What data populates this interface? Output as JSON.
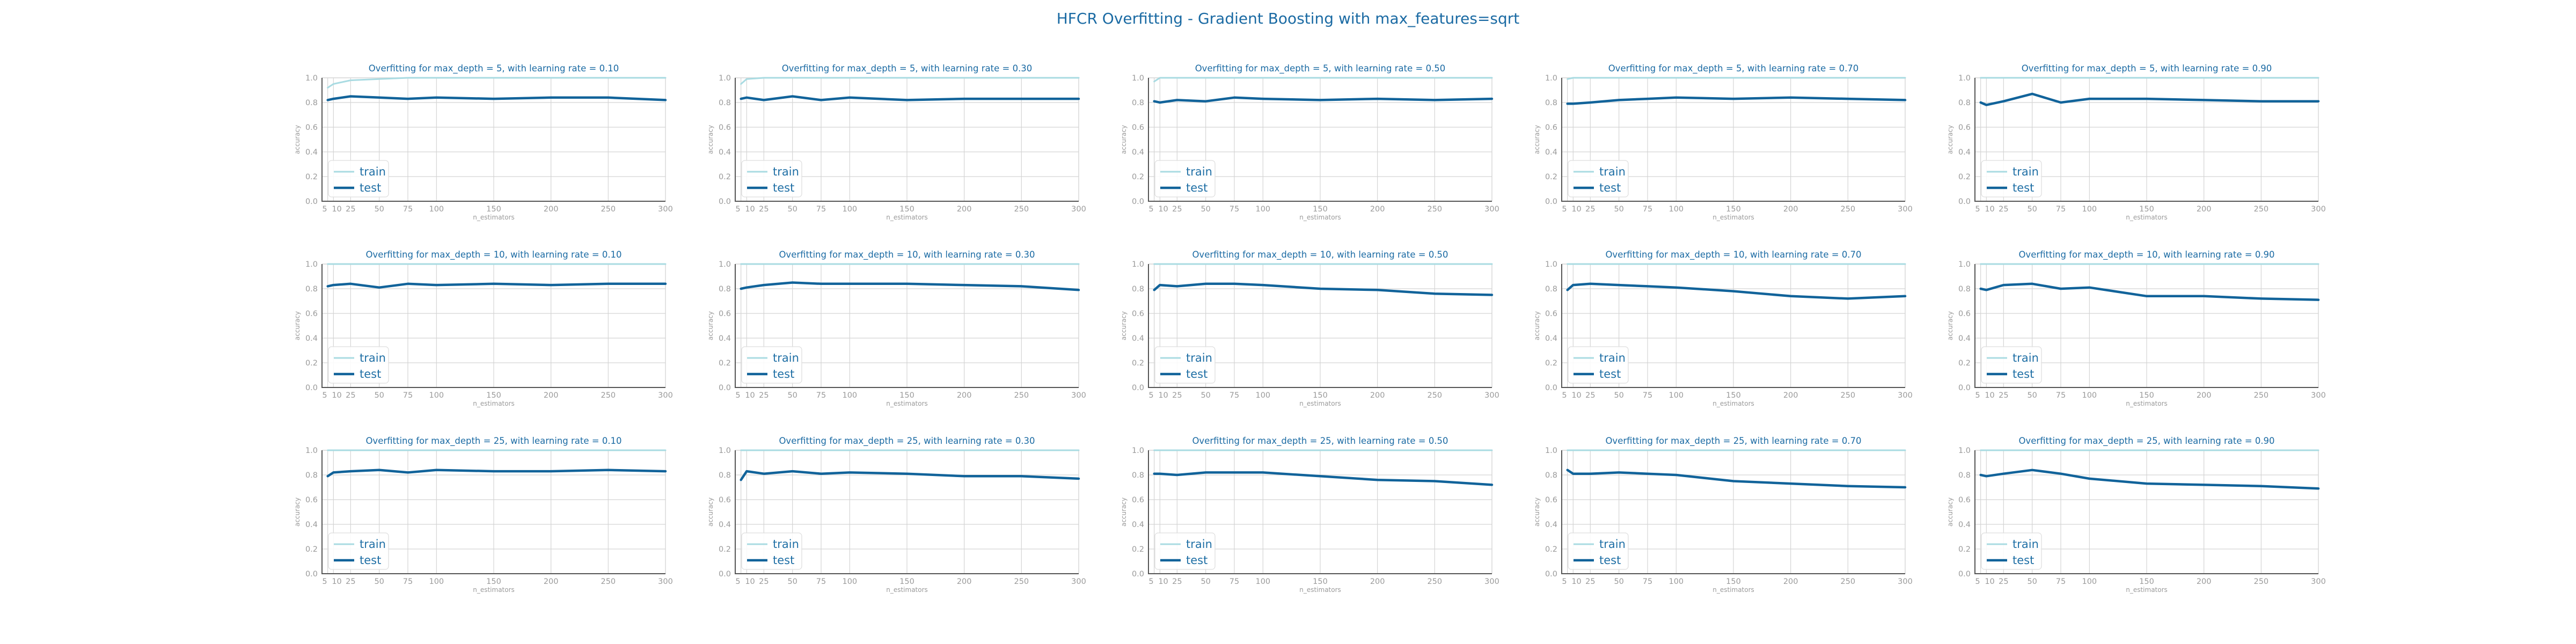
{
  "figure_title": "HFCR Overfitting - Gradient Boosting with max_features=sqrt",
  "colors": {
    "train": "#a9dbe2",
    "test": "#11639a",
    "title": "#1a6aa3",
    "grid": "#d4d4d4",
    "axis": "#555555",
    "tick": "#9a9a9a"
  },
  "chart_data": [
    {
      "type": "line",
      "title": "Overfitting for max_depth = 5, with learning rate = 0.10",
      "xlabel": "n_estimators",
      "ylabel": "accuracy",
      "ylim": [
        0,
        1
      ],
      "legend": "lower-left",
      "grid": true,
      "x": [
        5,
        10,
        25,
        50,
        75,
        100,
        150,
        200,
        250,
        300
      ],
      "series": [
        {
          "name": "train",
          "values": [
            0.92,
            0.95,
            0.98,
            0.99,
            1,
            1,
            1,
            1,
            1,
            1
          ]
        },
        {
          "name": "test",
          "values": [
            0.82,
            0.83,
            0.85,
            0.84,
            0.83,
            0.84,
            0.83,
            0.84,
            0.84,
            0.82
          ]
        }
      ]
    },
    {
      "type": "line",
      "title": "Overfitting for max_depth = 5, with learning rate = 0.30",
      "xlabel": "n_estimators",
      "ylabel": "accuracy",
      "ylim": [
        0,
        1
      ],
      "legend": "lower-left",
      "grid": true,
      "x": [
        5,
        10,
        25,
        50,
        75,
        100,
        150,
        200,
        250,
        300
      ],
      "series": [
        {
          "name": "train",
          "values": [
            0.95,
            0.99,
            1,
            1,
            1,
            1,
            1,
            1,
            1,
            1
          ]
        },
        {
          "name": "test",
          "values": [
            0.83,
            0.84,
            0.82,
            0.85,
            0.82,
            0.84,
            0.82,
            0.83,
            0.83,
            0.83
          ]
        }
      ]
    },
    {
      "type": "line",
      "title": "Overfitting for max_depth = 5, with learning rate = 0.50",
      "xlabel": "n_estimators",
      "ylabel": "accuracy",
      "ylim": [
        0,
        1
      ],
      "legend": "lower-left",
      "grid": true,
      "x": [
        5,
        10,
        25,
        50,
        75,
        100,
        150,
        200,
        250,
        300
      ],
      "series": [
        {
          "name": "train",
          "values": [
            0.97,
            1,
            1,
            1,
            1,
            1,
            1,
            1,
            1,
            1
          ]
        },
        {
          "name": "test",
          "values": [
            0.81,
            0.8,
            0.82,
            0.81,
            0.84,
            0.83,
            0.82,
            0.83,
            0.82,
            0.83
          ]
        }
      ]
    },
    {
      "type": "line",
      "title": "Overfitting for max_depth = 5, with learning rate = 0.70",
      "xlabel": "n_estimators",
      "ylabel": "accuracy",
      "ylim": [
        0,
        1
      ],
      "legend": "lower-left",
      "grid": true,
      "x": [
        5,
        10,
        25,
        50,
        75,
        100,
        150,
        200,
        250,
        300
      ],
      "series": [
        {
          "name": "train",
          "values": [
            0.99,
            1,
            1,
            1,
            1,
            1,
            1,
            1,
            1,
            1
          ]
        },
        {
          "name": "test",
          "values": [
            0.79,
            0.79,
            0.8,
            0.82,
            0.83,
            0.84,
            0.83,
            0.84,
            0.83,
            0.82
          ]
        }
      ]
    },
    {
      "type": "line",
      "title": "Overfitting for max_depth = 5, with learning rate = 0.90",
      "xlabel": "n_estimators",
      "ylabel": "accuracy",
      "ylim": [
        0,
        1
      ],
      "legend": "lower-left",
      "grid": true,
      "x": [
        5,
        10,
        25,
        50,
        75,
        100,
        150,
        200,
        250,
        300
      ],
      "series": [
        {
          "name": "train",
          "values": [
            1,
            1,
            1,
            1,
            1,
            1,
            1,
            1,
            1,
            1
          ]
        },
        {
          "name": "test",
          "values": [
            0.8,
            0.78,
            0.81,
            0.87,
            0.8,
            0.83,
            0.83,
            0.82,
            0.81,
            0.81
          ]
        }
      ]
    },
    {
      "type": "line",
      "title": "Overfitting for max_depth = 10, with learning rate = 0.10",
      "xlabel": "n_estimators",
      "ylabel": "accuracy",
      "ylim": [
        0,
        1
      ],
      "legend": "lower-left",
      "grid": true,
      "x": [
        5,
        10,
        25,
        50,
        75,
        100,
        150,
        200,
        250,
        300
      ],
      "series": [
        {
          "name": "train",
          "values": [
            1,
            1,
            1,
            1,
            1,
            1,
            1,
            1,
            1,
            1
          ]
        },
        {
          "name": "test",
          "values": [
            0.82,
            0.83,
            0.84,
            0.81,
            0.84,
            0.83,
            0.84,
            0.83,
            0.84,
            0.84
          ]
        }
      ]
    },
    {
      "type": "line",
      "title": "Overfitting for max_depth = 10, with learning rate = 0.30",
      "xlabel": "n_estimators",
      "ylabel": "accuracy",
      "ylim": [
        0,
        1
      ],
      "legend": "lower-left",
      "grid": true,
      "x": [
        5,
        10,
        25,
        50,
        75,
        100,
        150,
        200,
        250,
        300
      ],
      "series": [
        {
          "name": "train",
          "values": [
            1,
            1,
            1,
            1,
            1,
            1,
            1,
            1,
            1,
            1
          ]
        },
        {
          "name": "test",
          "values": [
            0.8,
            0.81,
            0.83,
            0.85,
            0.84,
            0.84,
            0.84,
            0.83,
            0.82,
            0.79
          ]
        }
      ]
    },
    {
      "type": "line",
      "title": "Overfitting for max_depth = 10, with learning rate = 0.50",
      "xlabel": "n_estimators",
      "ylabel": "accuracy",
      "ylim": [
        0,
        1
      ],
      "legend": "lower-left",
      "grid": true,
      "x": [
        5,
        10,
        25,
        50,
        75,
        100,
        150,
        200,
        250,
        300
      ],
      "series": [
        {
          "name": "train",
          "values": [
            1,
            1,
            1,
            1,
            1,
            1,
            1,
            1,
            1,
            1
          ]
        },
        {
          "name": "test",
          "values": [
            0.79,
            0.83,
            0.82,
            0.84,
            0.84,
            0.83,
            0.8,
            0.79,
            0.76,
            0.75
          ]
        }
      ]
    },
    {
      "type": "line",
      "title": "Overfitting for max_depth = 10, with learning rate = 0.70",
      "xlabel": "n_estimators",
      "ylabel": "accuracy",
      "ylim": [
        0,
        1
      ],
      "legend": "lower-left",
      "grid": true,
      "x": [
        5,
        10,
        25,
        50,
        75,
        100,
        150,
        200,
        250,
        300
      ],
      "series": [
        {
          "name": "train",
          "values": [
            1,
            1,
            1,
            1,
            1,
            1,
            1,
            1,
            1,
            1
          ]
        },
        {
          "name": "test",
          "values": [
            0.79,
            0.83,
            0.84,
            0.83,
            0.82,
            0.81,
            0.78,
            0.74,
            0.72,
            0.74
          ]
        }
      ]
    },
    {
      "type": "line",
      "title": "Overfitting for max_depth = 10, with learning rate = 0.90",
      "xlabel": "n_estimators",
      "ylabel": "accuracy",
      "ylim": [
        0,
        1
      ],
      "legend": "lower-left",
      "grid": true,
      "x": [
        5,
        10,
        25,
        50,
        75,
        100,
        150,
        200,
        250,
        300
      ],
      "series": [
        {
          "name": "train",
          "values": [
            1,
            1,
            1,
            1,
            1,
            1,
            1,
            1,
            1,
            1
          ]
        },
        {
          "name": "test",
          "values": [
            0.8,
            0.79,
            0.83,
            0.84,
            0.8,
            0.81,
            0.74,
            0.74,
            0.72,
            0.71
          ]
        }
      ]
    },
    {
      "type": "line",
      "title": "Overfitting for max_depth = 25, with learning rate = 0.10",
      "xlabel": "n_estimators",
      "ylabel": "accuracy",
      "ylim": [
        0,
        1
      ],
      "legend": "lower-left",
      "grid": true,
      "x": [
        5,
        10,
        25,
        50,
        75,
        100,
        150,
        200,
        250,
        300
      ],
      "series": [
        {
          "name": "train",
          "values": [
            1,
            1,
            1,
            1,
            1,
            1,
            1,
            1,
            1,
            1
          ]
        },
        {
          "name": "test",
          "values": [
            0.79,
            0.82,
            0.83,
            0.84,
            0.82,
            0.84,
            0.83,
            0.83,
            0.84,
            0.83
          ]
        }
      ]
    },
    {
      "type": "line",
      "title": "Overfitting for max_depth = 25, with learning rate = 0.30",
      "xlabel": "n_estimators",
      "ylabel": "accuracy",
      "ylim": [
        0,
        1
      ],
      "legend": "lower-left",
      "grid": true,
      "x": [
        5,
        10,
        25,
        50,
        75,
        100,
        150,
        200,
        250,
        300
      ],
      "series": [
        {
          "name": "train",
          "values": [
            1,
            1,
            1,
            1,
            1,
            1,
            1,
            1,
            1,
            1
          ]
        },
        {
          "name": "test",
          "values": [
            0.76,
            0.83,
            0.81,
            0.83,
            0.81,
            0.82,
            0.81,
            0.79,
            0.79,
            0.77
          ]
        }
      ]
    },
    {
      "type": "line",
      "title": "Overfitting for max_depth = 25, with learning rate = 0.50",
      "xlabel": "n_estimators",
      "ylabel": "accuracy",
      "ylim": [
        0,
        1
      ],
      "legend": "lower-left",
      "grid": true,
      "x": [
        5,
        10,
        25,
        50,
        75,
        100,
        150,
        200,
        250,
        300
      ],
      "series": [
        {
          "name": "train",
          "values": [
            1,
            1,
            1,
            1,
            1,
            1,
            1,
            1,
            1,
            1
          ]
        },
        {
          "name": "test",
          "values": [
            0.81,
            0.81,
            0.8,
            0.82,
            0.82,
            0.82,
            0.79,
            0.76,
            0.75,
            0.72
          ]
        }
      ]
    },
    {
      "type": "line",
      "title": "Overfitting for max_depth = 25, with learning rate = 0.70",
      "xlabel": "n_estimators",
      "ylabel": "accuracy",
      "ylim": [
        0,
        1
      ],
      "legend": "lower-left",
      "grid": true,
      "x": [
        5,
        10,
        25,
        50,
        75,
        100,
        150,
        200,
        250,
        300
      ],
      "series": [
        {
          "name": "train",
          "values": [
            1,
            1,
            1,
            1,
            1,
            1,
            1,
            1,
            1,
            1
          ]
        },
        {
          "name": "test",
          "values": [
            0.84,
            0.81,
            0.81,
            0.82,
            0.81,
            0.8,
            0.75,
            0.73,
            0.71,
            0.7
          ]
        }
      ]
    },
    {
      "type": "line",
      "title": "Overfitting for max_depth = 25, with learning rate = 0.90",
      "xlabel": "n_estimators",
      "ylabel": "accuracy",
      "ylim": [
        0,
        1
      ],
      "legend": "lower-left",
      "grid": true,
      "x": [
        5,
        10,
        25,
        50,
        75,
        100,
        150,
        200,
        250,
        300
      ],
      "series": [
        {
          "name": "train",
          "values": [
            1,
            1,
            1,
            1,
            1,
            1,
            1,
            1,
            1,
            1
          ]
        },
        {
          "name": "test",
          "values": [
            0.8,
            0.79,
            0.81,
            0.84,
            0.81,
            0.77,
            0.73,
            0.72,
            0.71,
            0.69
          ]
        }
      ]
    }
  ],
  "x_tick_labels": [
    "5",
    "10",
    "25",
    "50",
    "75",
    "100",
    "150",
    "200",
    "250",
    "300"
  ],
  "y_tick_labels": [
    "0.0",
    "0.2",
    "0.4",
    "0.6",
    "0.8",
    "1.0"
  ]
}
